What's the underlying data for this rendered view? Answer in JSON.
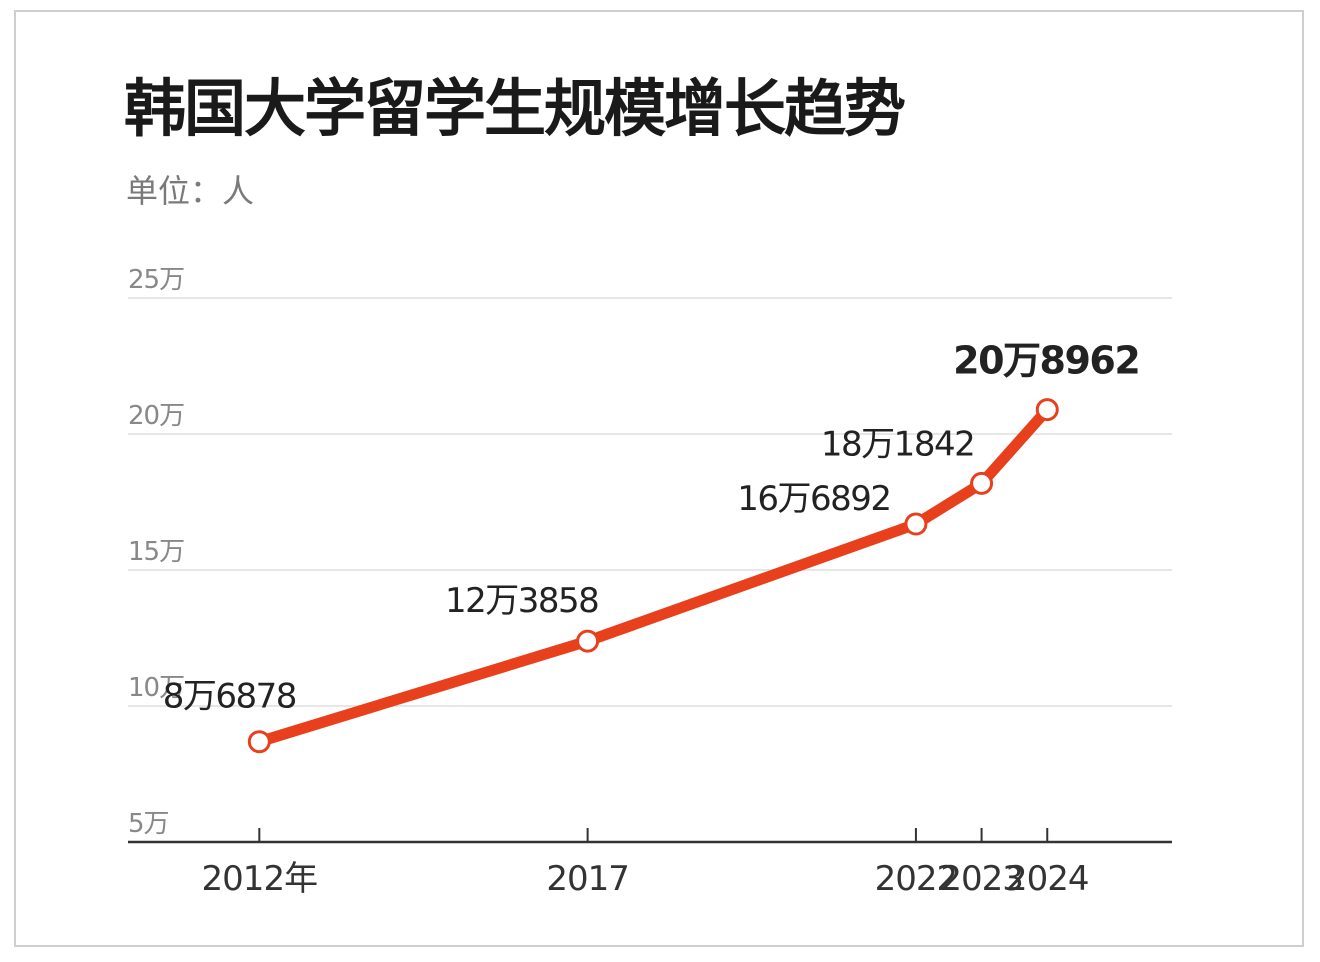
{
  "chart_data": {
    "type": "line",
    "title": "韩国大学留学生规模增长趋势",
    "unit_label": "单位：人",
    "x": [
      "2012年",
      "2017",
      "2022",
      "2023",
      "2024"
    ],
    "x_numeric": [
      2012,
      2017,
      2022,
      2023,
      2024
    ],
    "y_ticks": [
      50000,
      100000,
      150000,
      200000,
      250000
    ],
    "y_tick_labels": [
      "5万",
      "10万",
      "15万",
      "20万",
      "25万"
    ],
    "ylim": [
      50000,
      250000
    ],
    "series": [
      {
        "values": [
          86878,
          123858,
          166892,
          181842,
          208962
        ],
        "labels": [
          "8万6878",
          "12万3858",
          "16万6892",
          "18万1842",
          "20万8962"
        ]
      }
    ],
    "grid": true,
    "colors": {
      "line": "#e8401c",
      "grid": "#e6e6e6",
      "axis": "#333333",
      "tick_text": "#888888"
    }
  }
}
